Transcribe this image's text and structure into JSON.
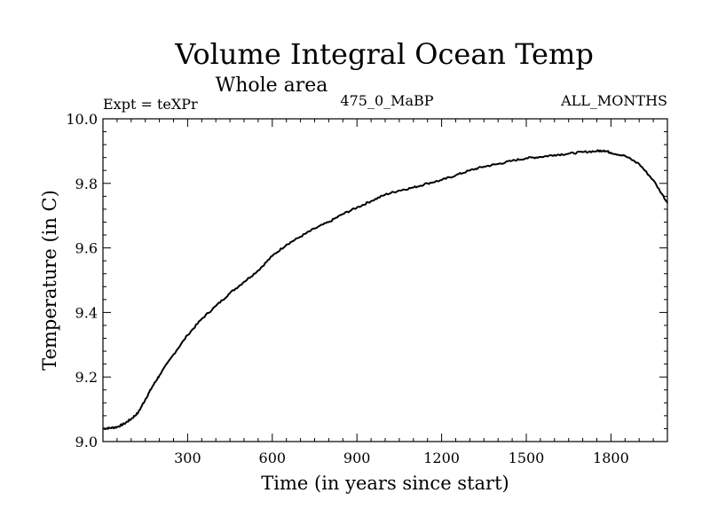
{
  "chart_data": {
    "type": "line",
    "title": "Volume Integral Ocean Temp",
    "subtitle": "Whole area",
    "annotations": {
      "left": "Expt = teXPr",
      "center": "475_0_MaBP",
      "right": "ALL_MONTHS"
    },
    "xlabel": "Time (in years since start)",
    "ylabel": "Temperature (in C)",
    "xlim": [
      0,
      2000
    ],
    "ylim": [
      9.0,
      10.0
    ],
    "xticks": [
      300,
      600,
      900,
      1200,
      1500,
      1800
    ],
    "yticks": [
      9.0,
      9.2,
      9.4,
      9.6,
      9.8,
      10.0
    ],
    "ytick_labels": [
      "9.0",
      "9.2",
      "9.4",
      "9.6",
      "9.8",
      "10.0"
    ],
    "grid": false,
    "series": [
      {
        "color": "#000000",
        "x": [
          0,
          25,
          50,
          75,
          100,
          125,
          150,
          175,
          200,
          250,
          300,
          350,
          400,
          450,
          500,
          550,
          600,
          650,
          700,
          750,
          800,
          850,
          900,
          950,
          1000,
          1050,
          1100,
          1150,
          1200,
          1250,
          1300,
          1350,
          1400,
          1450,
          1500,
          1550,
          1600,
          1650,
          1700,
          1750,
          1775,
          1800,
          1850,
          1900,
          1950,
          2000
        ],
        "y": [
          9.04,
          9.042,
          9.045,
          9.055,
          9.07,
          9.09,
          9.13,
          9.17,
          9.205,
          9.27,
          9.33,
          9.38,
          9.42,
          9.46,
          9.495,
          9.53,
          9.575,
          9.61,
          9.635,
          9.66,
          9.68,
          9.705,
          9.725,
          9.745,
          9.765,
          9.778,
          9.787,
          9.8,
          9.81,
          9.825,
          9.84,
          9.852,
          9.86,
          9.87,
          9.878,
          9.882,
          9.888,
          9.892,
          9.897,
          9.9,
          9.902,
          9.895,
          9.885,
          9.86,
          9.81,
          9.74
        ]
      }
    ]
  }
}
